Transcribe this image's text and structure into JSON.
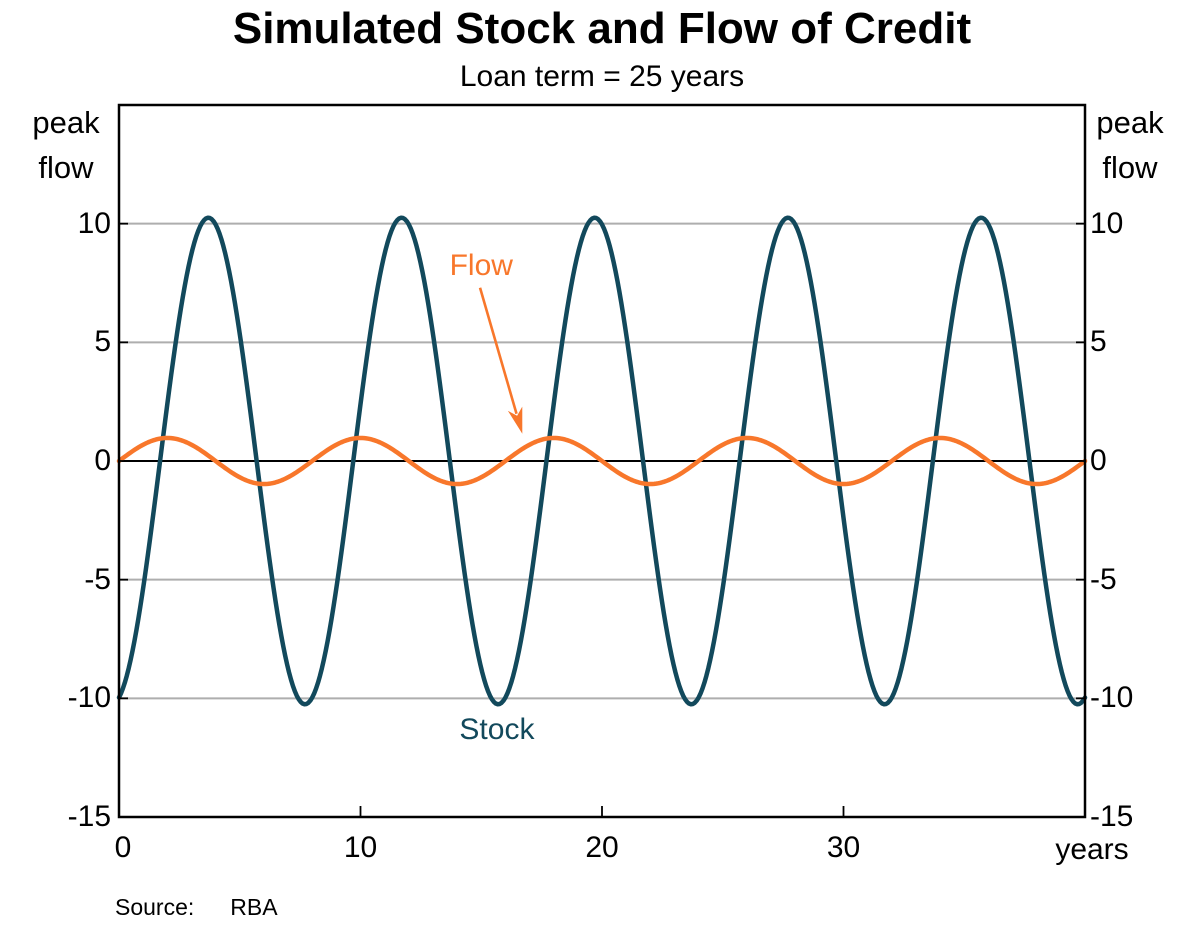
{
  "figure": {
    "title": "Simulated Stock and Flow of Credit",
    "subtitle": "Loan term = 25 years",
    "source_label": "Source:",
    "source_value": "RBA",
    "background_color": "#FFFFFF"
  },
  "chart_data": {
    "type": "line",
    "title": "Simulated Stock and Flow of Credit",
    "subtitle": "Loan term = 25 years",
    "x_axis": {
      "min": 0,
      "max": 40,
      "ticks": [
        0,
        10,
        20,
        30
      ],
      "unit_label": "years"
    },
    "y_axis": {
      "min": -15,
      "max": 15,
      "tick_step": 5,
      "labeled_ticks": [
        10,
        5,
        0,
        -5,
        -10,
        -15
      ],
      "unit_label_lines": [
        "peak",
        "flow"
      ],
      "unit_label": "peak flow",
      "gridlines_at": [
        10,
        5,
        -5,
        -10
      ],
      "zero_line_at": 0
    },
    "grid_color": "#AEAEAE",
    "frame_color": "#000000",
    "series": [
      {
        "name": "Stock",
        "color": "#12495C",
        "shape": "sinusoid",
        "amplitude": 10.25,
        "period_years": 8,
        "phase_shift_years": 1.7,
        "formula": "stock(t) = 10.25 · sin(2π(t − 1.7)/8)",
        "value_at_t0": -10,
        "peak_value": 10.25,
        "trough_value": -10.25,
        "peaks_at_years": [
          3.7,
          11.7,
          19.7,
          27.7,
          35.7
        ]
      },
      {
        "name": "Flow",
        "color": "#F8772B",
        "shape": "sinusoid",
        "amplitude": 0.97,
        "period_years": 8,
        "phase_shift_years": 0,
        "formula": "flow(t) = 0.97 · sin(2πt/8)",
        "value_at_t0": 0,
        "peak_value": 0.97,
        "trough_value": -0.97,
        "peaks_at_years": [
          2,
          10,
          18,
          26,
          34
        ]
      }
    ],
    "annotations": {
      "flow_label": {
        "text": "Flow",
        "color": "#F8772B",
        "x_years": 15.0,
        "y_value": 8.2
      },
      "flow_arrow": {
        "color": "#F8772B",
        "from_x_years": 14.95,
        "from_y_value": 7.3,
        "to_x_years": 16.7,
        "to_y_value": 1.15
      },
      "stock_label": {
        "text": "Stock",
        "color": "#12495C",
        "x_years": 15.65,
        "y_value": -11.35
      }
    },
    "legend": "none (series labelled by in-chart annotations)"
  }
}
